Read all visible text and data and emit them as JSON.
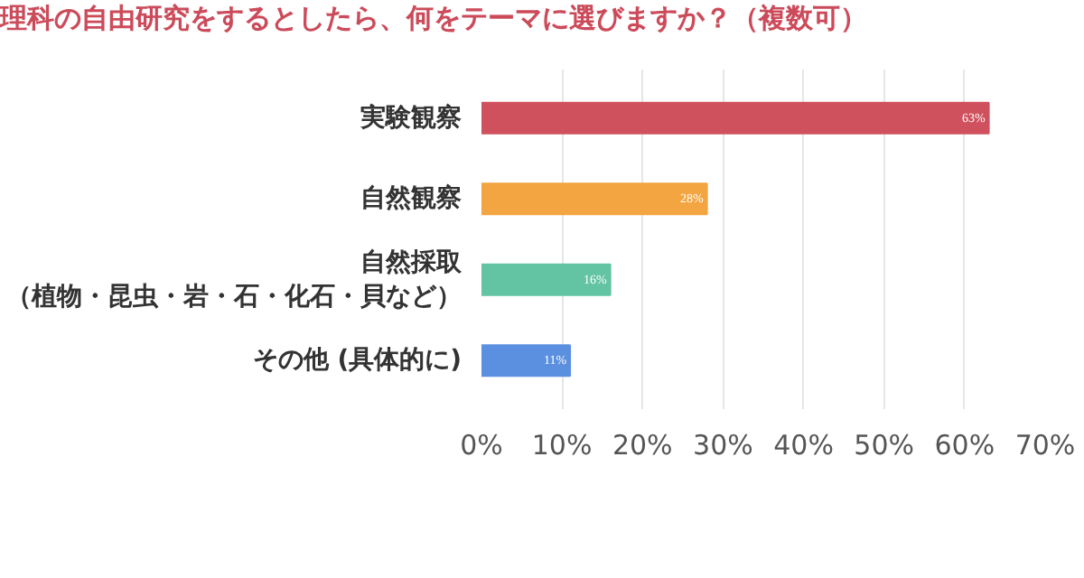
{
  "chart_data": {
    "type": "bar",
    "orientation": "horizontal",
    "title": "理科の自由研究をするとしたら、何をテーマに選びますか？（複数可）",
    "categories": [
      "実験観察",
      "自然観察",
      "自然採取（植物・昆虫・岩・石・化石・貝など）",
      "その他 (具体的に)"
    ],
    "values": [
      63,
      28,
      16,
      11
    ],
    "colors": [
      "#d0515e",
      "#f2a541",
      "#62c4a2",
      "#5b8fdf"
    ],
    "value_labels": [
      "63%",
      "28%",
      "16%",
      "11%"
    ],
    "xlim": [
      0,
      70
    ],
    "xticks": [
      {
        "value": 0,
        "label": "0%"
      },
      {
        "value": 10,
        "label": "10%"
      },
      {
        "value": 20,
        "label": "20%"
      },
      {
        "value": 30,
        "label": "30%"
      },
      {
        "value": 40,
        "label": "40%"
      },
      {
        "value": 50,
        "label": "50%"
      },
      {
        "value": 60,
        "label": "60%"
      },
      {
        "value": 70,
        "label": "70%"
      }
    ],
    "grid": "x"
  }
}
